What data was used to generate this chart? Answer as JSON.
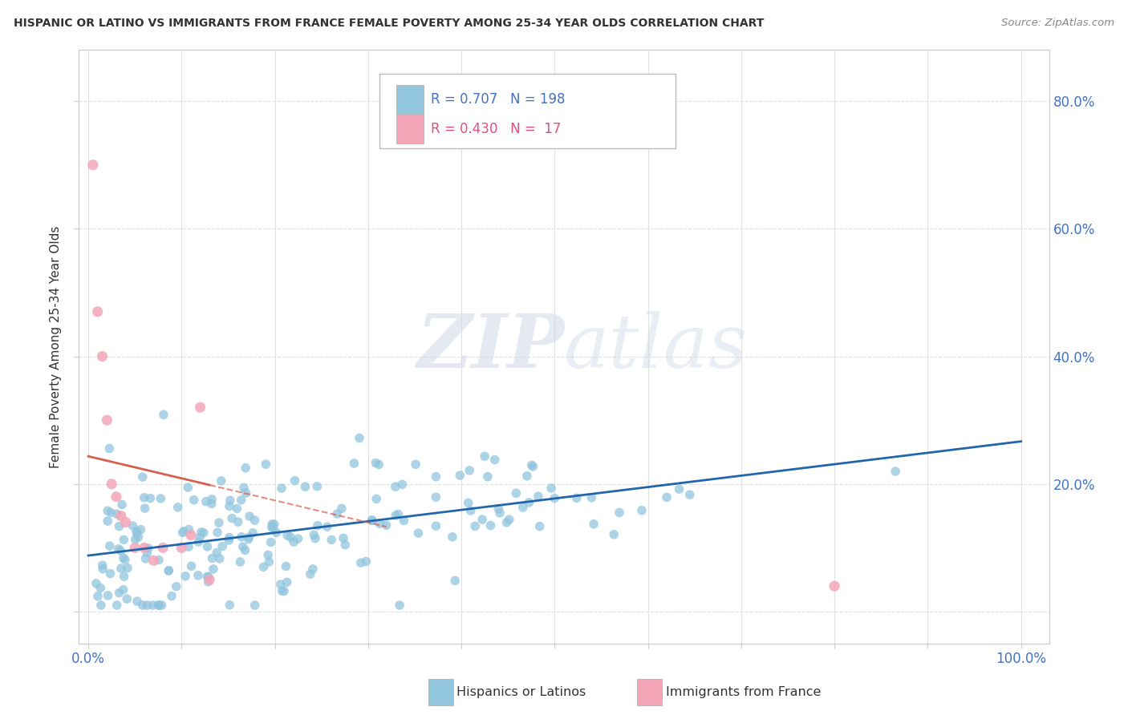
{
  "title": "HISPANIC OR LATINO VS IMMIGRANTS FROM FRANCE FEMALE POVERTY AMONG 25-34 YEAR OLDS CORRELATION CHART",
  "source": "Source: ZipAtlas.com",
  "ylabel": "Female Poverty Among 25-34 Year Olds",
  "legend1_r": "0.707",
  "legend1_n": "198",
  "legend2_r": "0.430",
  "legend2_n": "17",
  "blue_color": "#92c5de",
  "pink_color": "#f4a5b8",
  "blue_line_color": "#2166ac",
  "pink_line_color": "#d6604d",
  "watermark_zip": "ZIP",
  "watermark_atlas": "atlas",
  "background_color": "#ffffff",
  "grid_color": "#e0e0e0",
  "tick_color": "#4472c4",
  "label_color": "#333333",
  "pink_scatter_x": [
    0.005,
    0.01,
    0.015,
    0.02,
    0.025,
    0.03,
    0.035,
    0.04,
    0.05,
    0.06,
    0.07,
    0.08,
    0.1,
    0.11,
    0.12,
    0.13,
    0.8
  ],
  "pink_scatter_y": [
    0.7,
    0.47,
    0.4,
    0.3,
    0.2,
    0.18,
    0.15,
    0.14,
    0.1,
    0.1,
    0.08,
    0.1,
    0.1,
    0.12,
    0.32,
    0.05,
    0.04
  ],
  "blue_seed": 123,
  "n_blue": 198
}
